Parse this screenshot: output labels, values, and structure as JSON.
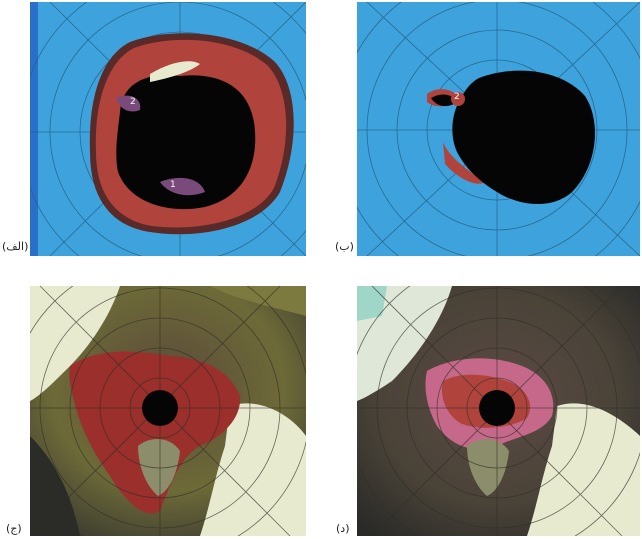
{
  "panels": [
    {
      "id": "a",
      "label": "(الف)",
      "markers": [
        "2",
        "1"
      ]
    },
    {
      "id": "b",
      "label": "(ب)",
      "markers": [
        "2"
      ]
    },
    {
      "id": "c",
      "label": "(ج)",
      "markers": []
    },
    {
      "id": "d",
      "label": "(د)",
      "markers": []
    }
  ],
  "colors": {
    "ocean_blue": "#3ea3dc",
    "continent_black": "#050505",
    "ice_red": "#b0443c",
    "ice_light": "#e8ead0",
    "land_olive": "#7d7a40"
  }
}
